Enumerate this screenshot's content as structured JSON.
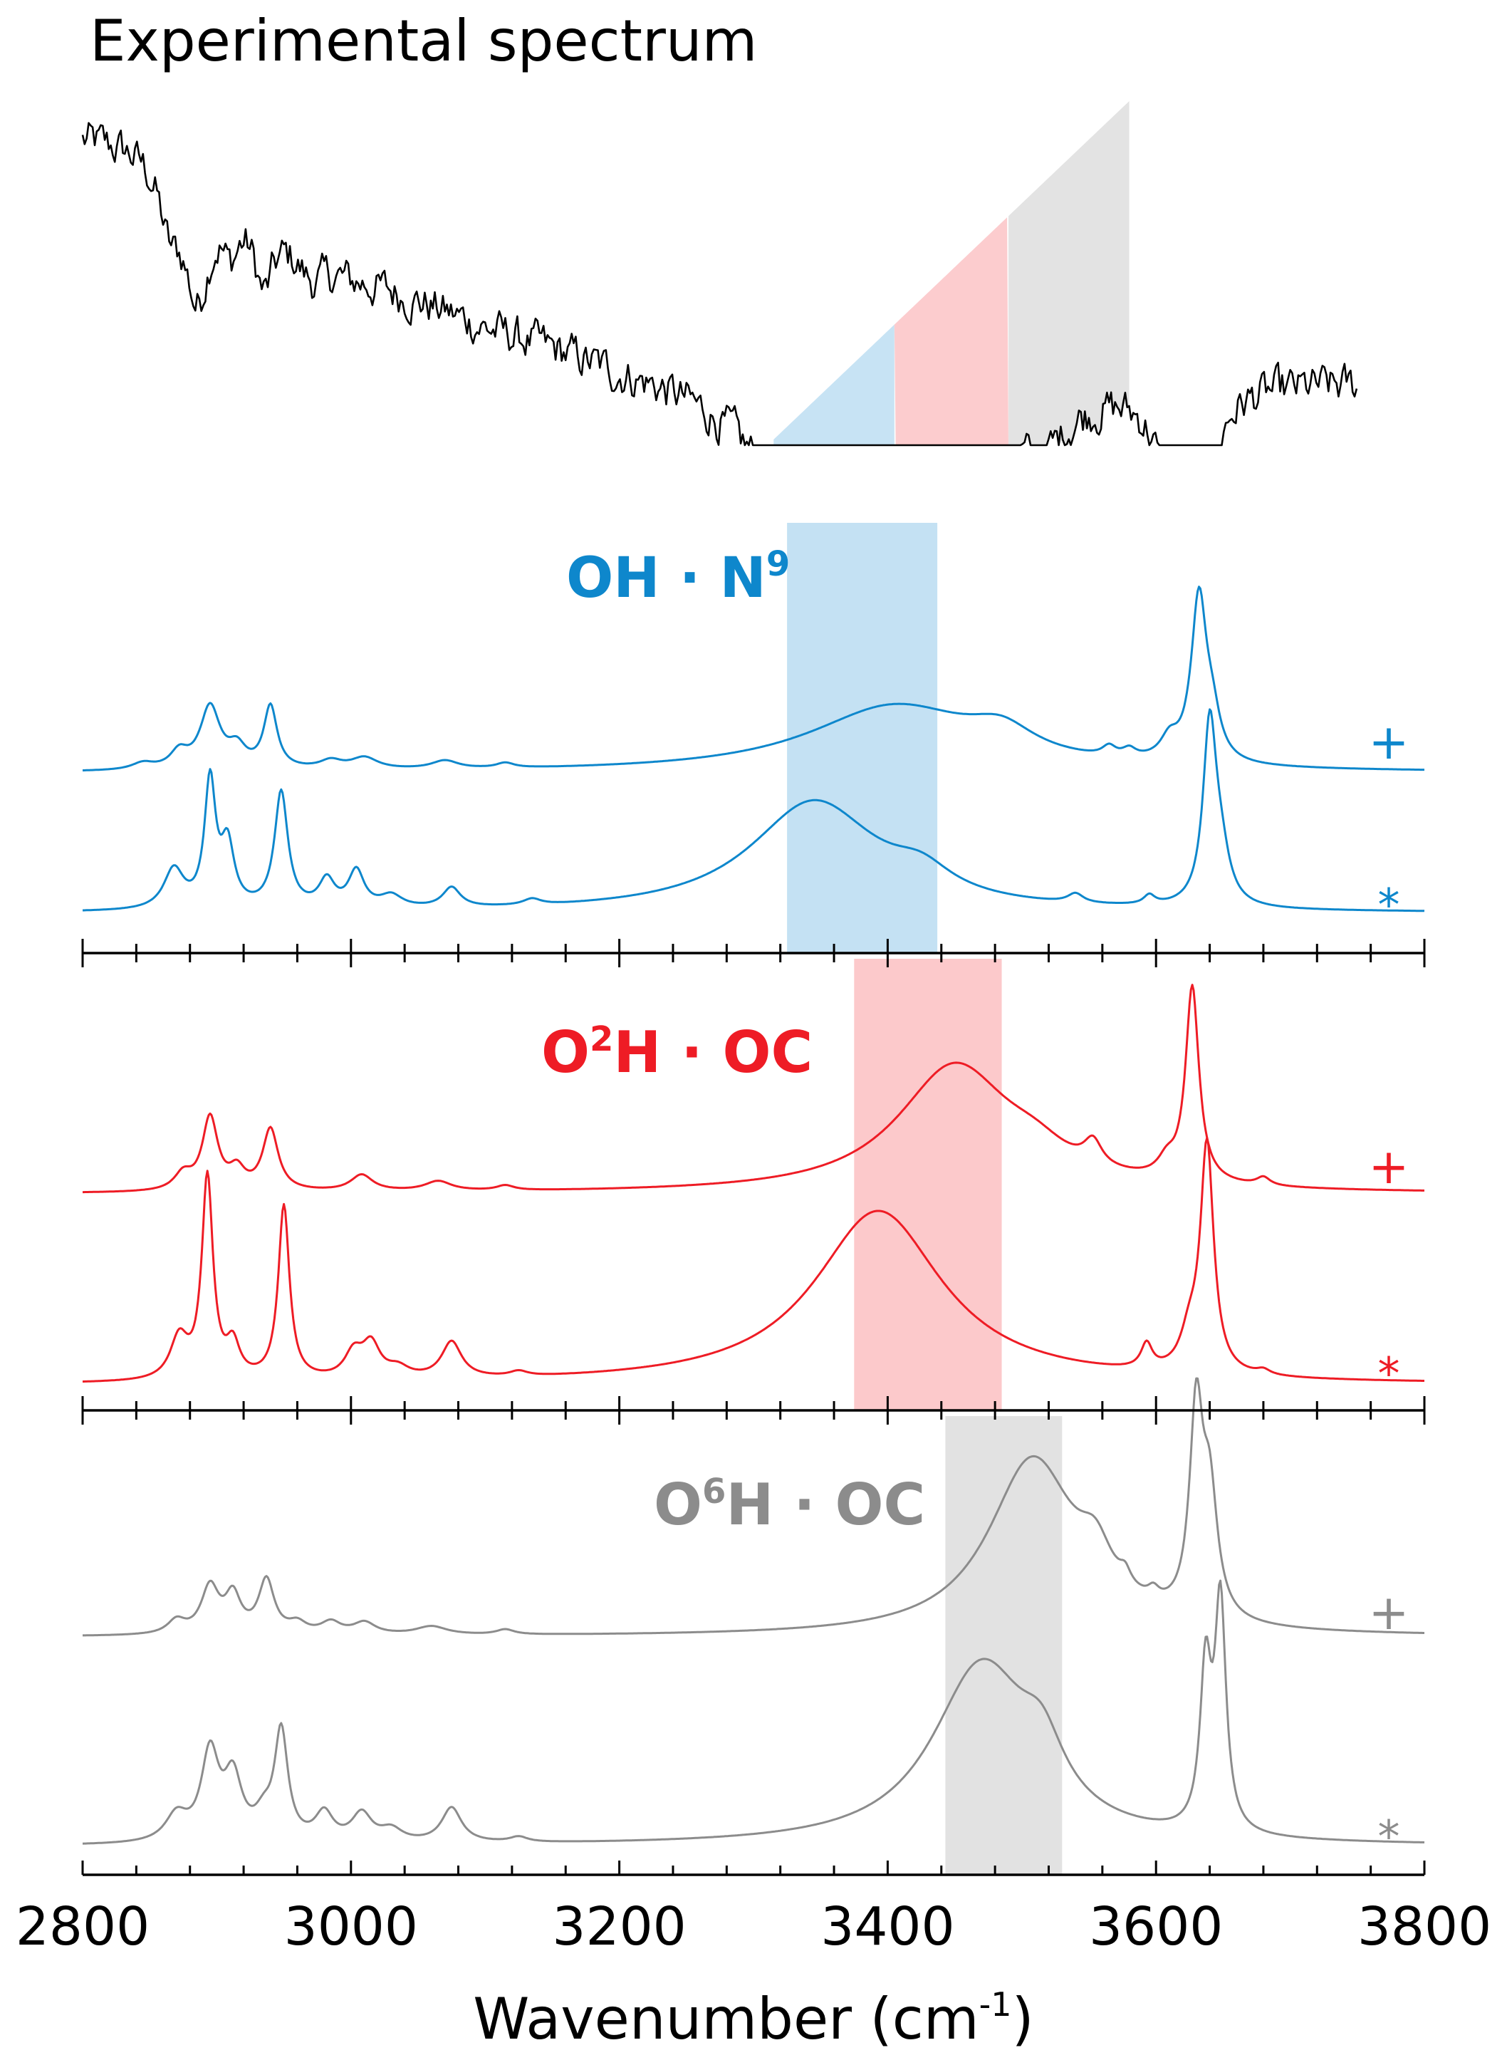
{
  "chart_data": {
    "type": "line",
    "x_range": [
      2800,
      3800
    ],
    "xlabel": "Wavenumber (cm",
    "xlabel_sup": "-1",
    "xlabel_close": ")",
    "x_ticks": [
      "2800",
      "3000",
      "3200",
      "3400",
      "3600",
      "3800"
    ],
    "x_minor_step": 40,
    "grid": false,
    "panels": [
      {
        "id": "experimental",
        "title": "Experimental spectrum",
        "color": "#000000",
        "shaded_regions": [
          {
            "x": [
              3315,
              3405
            ],
            "color": "#c4e1f3"
          },
          {
            "x": [
              3405,
              3490
            ],
            "color": "#fcc9cb"
          },
          {
            "x": [
              3490,
              3580
            ],
            "color": "#e2e2e2"
          }
        ],
        "trace": {
          "type": "absorption",
          "noise": 0.045,
          "baseline": [
            [
              2800,
              0.84
            ],
            [
              2880,
              0.82
            ],
            [
              3000,
              0.45
            ],
            [
              3100,
              0.3
            ],
            [
              3200,
              0.2
            ],
            [
              3300,
              0.15
            ],
            [
              3315,
              0.15
            ],
            [
              3800,
              0.12
            ]
          ],
          "dips": [
            {
              "center": 2885,
              "amplitude": 0.42,
              "width": 12
            },
            {
              "center": 2865,
              "amplitude": 0.2,
              "width": 10
            },
            {
              "center": 2935,
              "amplitude": 0.22,
              "width": 9
            },
            {
              "center": 2910,
              "amplitude": 0.15,
              "width": 8
            },
            {
              "center": 2970,
              "amplitude": 0.1,
              "width": 15
            },
            {
              "center": 3365,
              "amplitude": 0.6,
              "width": 55
            },
            {
              "center": 3450,
              "amplitude": 0.25,
              "width": 35
            },
            {
              "center": 3515,
              "amplitude": 0.12,
              "width": 20
            },
            {
              "center": 3630,
              "amplitude": 0.88,
              "width": 8
            },
            {
              "center": 3612,
              "amplitude": 0.3,
              "width": 10
            }
          ]
        }
      },
      {
        "id": "oh-n9",
        "title": "OH · N",
        "title_sup": "9",
        "color": "#0e87cc",
        "band": {
          "x": [
            3325,
            3437
          ],
          "color": "#c4e1f3"
        },
        "series": [
          {
            "marker": "+",
            "peaks": [
              {
                "center": 2895,
                "amplitude": 0.38,
                "width": 9
              },
              {
                "center": 2872,
                "amplitude": 0.1,
                "width": 8
              },
              {
                "center": 2845,
                "amplitude": 0.04,
                "width": 10
              },
              {
                "center": 2915,
                "amplitude": 0.12,
                "width": 8
              },
              {
                "center": 2940,
                "amplitude": 0.38,
                "width": 6
              },
              {
                "center": 2985,
                "amplitude": 0.05,
                "width": 10
              },
              {
                "center": 3010,
                "amplitude": 0.07,
                "width": 12
              },
              {
                "center": 3070,
                "amplitude": 0.05,
                "width": 12
              },
              {
                "center": 3115,
                "amplitude": 0.03,
                "width": 8
              },
              {
                "center": 3405,
                "amplitude": 0.4,
                "width": 78
              },
              {
                "center": 3485,
                "amplitude": 0.15,
                "width": 30
              },
              {
                "center": 3565,
                "amplitude": 0.06,
                "width": 6
              },
              {
                "center": 3580,
                "amplitude": 0.05,
                "width": 6
              },
              {
                "center": 3610,
                "amplitude": 0.12,
                "width": 8
              },
              {
                "center": 3632,
                "amplitude": 1.0,
                "width": 7
              },
              {
                "center": 3642,
                "amplitude": 0.22,
                "width": 7
              }
            ]
          },
          {
            "marker": "*",
            "peaks": [
              {
                "center": 2895,
                "amplitude": 0.82,
                "width": 5
              },
              {
                "center": 2908,
                "amplitude": 0.4,
                "width": 6
              },
              {
                "center": 2868,
                "amplitude": 0.26,
                "width": 9
              },
              {
                "center": 2948,
                "amplitude": 0.76,
                "width": 6
              },
              {
                "center": 2982,
                "amplitude": 0.18,
                "width": 7
              },
              {
                "center": 3004,
                "amplitude": 0.24,
                "width": 7
              },
              {
                "center": 3030,
                "amplitude": 0.08,
                "width": 10
              },
              {
                "center": 3075,
                "amplitude": 0.13,
                "width": 8
              },
              {
                "center": 3135,
                "amplitude": 0.04,
                "width": 8
              },
              {
                "center": 3345,
                "amplitude": 0.72,
                "width": 58
              },
              {
                "center": 3425,
                "amplitude": 0.15,
                "width": 28
              },
              {
                "center": 3540,
                "amplitude": 0.06,
                "width": 7
              },
              {
                "center": 3595,
                "amplitude": 0.06,
                "width": 5
              },
              {
                "center": 3640,
                "amplitude": 1.15,
                "width": 6
              },
              {
                "center": 3648,
                "amplitude": 0.3,
                "width": 8
              }
            ]
          }
        ]
      },
      {
        "id": "o2h-oc",
        "title": "O",
        "title_sup": "2",
        "title_rest": "H · OC",
        "color": "#ee1c25",
        "band": {
          "x": [
            3375,
            3485
          ],
          "color": "#fcc9cb"
        },
        "series": [
          {
            "marker": "+",
            "peaks": [
              {
                "center": 2895,
                "amplitude": 0.45,
                "width": 7
              },
              {
                "center": 2875,
                "amplitude": 0.1,
                "width": 8
              },
              {
                "center": 2915,
                "amplitude": 0.12,
                "width": 7
              },
              {
                "center": 2940,
                "amplitude": 0.38,
                "width": 7
              },
              {
                "center": 3008,
                "amplitude": 0.1,
                "width": 10
              },
              {
                "center": 3065,
                "amplitude": 0.06,
                "width": 12
              },
              {
                "center": 3115,
                "amplitude": 0.03,
                "width": 8
              },
              {
                "center": 3450,
                "amplitude": 0.78,
                "width": 52
              },
              {
                "center": 3510,
                "amplitude": 0.12,
                "width": 30
              },
              {
                "center": 3553,
                "amplitude": 0.15,
                "width": 8
              },
              {
                "center": 3608,
                "amplitude": 0.1,
                "width": 8
              },
              {
                "center": 3627,
                "amplitude": 1.2,
                "width": 6
              },
              {
                "center": 3680,
                "amplitude": 0.05,
                "width": 6
              }
            ]
          },
          {
            "marker": "*",
            "peaks": [
              {
                "center": 2893,
                "amplitude": 1.22,
                "width": 5
              },
              {
                "center": 2872,
                "amplitude": 0.25,
                "width": 8
              },
              {
                "center": 2912,
                "amplitude": 0.2,
                "width": 6
              },
              {
                "center": 2950,
                "amplitude": 1.05,
                "width": 5
              },
              {
                "center": 3002,
                "amplitude": 0.15,
                "width": 8
              },
              {
                "center": 3015,
                "amplitude": 0.2,
                "width": 8
              },
              {
                "center": 3035,
                "amplitude": 0.06,
                "width": 10
              },
              {
                "center": 3075,
                "amplitude": 0.22,
                "width": 9
              },
              {
                "center": 3125,
                "amplitude": 0.03,
                "width": 8
              },
              {
                "center": 3393,
                "amplitude": 1.05,
                "width": 58
              },
              {
                "center": 3593,
                "amplitude": 0.15,
                "width": 5
              },
              {
                "center": 3625,
                "amplitude": 0.2,
                "width": 8
              },
              {
                "center": 3638,
                "amplitude": 1.38,
                "width": 6
              },
              {
                "center": 3680,
                "amplitude": 0.03,
                "width": 6
              }
            ]
          }
        ]
      },
      {
        "id": "o6h-oc",
        "title": "O",
        "title_sup": "6",
        "title_rest": "H · OC",
        "color": "#8c8c8c",
        "band": {
          "x": [
            3443,
            3530
          ],
          "color": "#e2e2e2"
        },
        "series": [
          {
            "marker": "+",
            "peaks": [
              {
                "center": 2895,
                "amplitude": 0.28,
                "width": 8
              },
              {
                "center": 2870,
                "amplitude": 0.08,
                "width": 8
              },
              {
                "center": 2912,
                "amplitude": 0.22,
                "width": 7
              },
              {
                "center": 2937,
                "amplitude": 0.32,
                "width": 7
              },
              {
                "center": 2960,
                "amplitude": 0.06,
                "width": 8
              },
              {
                "center": 2985,
                "amplitude": 0.07,
                "width": 9
              },
              {
                "center": 3010,
                "amplitude": 0.07,
                "width": 10
              },
              {
                "center": 3060,
                "amplitude": 0.05,
                "width": 14
              },
              {
                "center": 3115,
                "amplitude": 0.03,
                "width": 8
              },
              {
                "center": 3508,
                "amplitude": 1.05,
                "width": 40
              },
              {
                "center": 3555,
                "amplitude": 0.25,
                "width": 15
              },
              {
                "center": 3577,
                "amplitude": 0.08,
                "width": 5
              },
              {
                "center": 3598,
                "amplitude": 0.06,
                "width": 5
              },
              {
                "center": 3630,
                "amplitude": 1.2,
                "width": 6
              },
              {
                "center": 3640,
                "amplitude": 0.7,
                "width": 7
              }
            ]
          },
          {
            "marker": "*",
            "peaks": [
              {
                "center": 2895,
                "amplitude": 0.5,
                "width": 8
              },
              {
                "center": 2912,
                "amplitude": 0.35,
                "width": 8
              },
              {
                "center": 2870,
                "amplitude": 0.15,
                "width": 10
              },
              {
                "center": 2948,
                "amplitude": 0.62,
                "width": 6
              },
              {
                "center": 2935,
                "amplitude": 0.12,
                "width": 8
              },
              {
                "center": 2980,
                "amplitude": 0.16,
                "width": 8
              },
              {
                "center": 3008,
                "amplitude": 0.16,
                "width": 9
              },
              {
                "center": 3030,
                "amplitude": 0.07,
                "width": 10
              },
              {
                "center": 3075,
                "amplitude": 0.2,
                "width": 9
              },
              {
                "center": 3125,
                "amplitude": 0.03,
                "width": 8
              },
              {
                "center": 3470,
                "amplitude": 1.02,
                "width": 45
              },
              {
                "center": 3515,
                "amplitude": 0.3,
                "width": 20
              },
              {
                "center": 3637,
                "amplitude": 0.9,
                "width": 5
              },
              {
                "center": 3648,
                "amplitude": 1.3,
                "width": 5
              }
            ]
          }
        ]
      }
    ]
  }
}
